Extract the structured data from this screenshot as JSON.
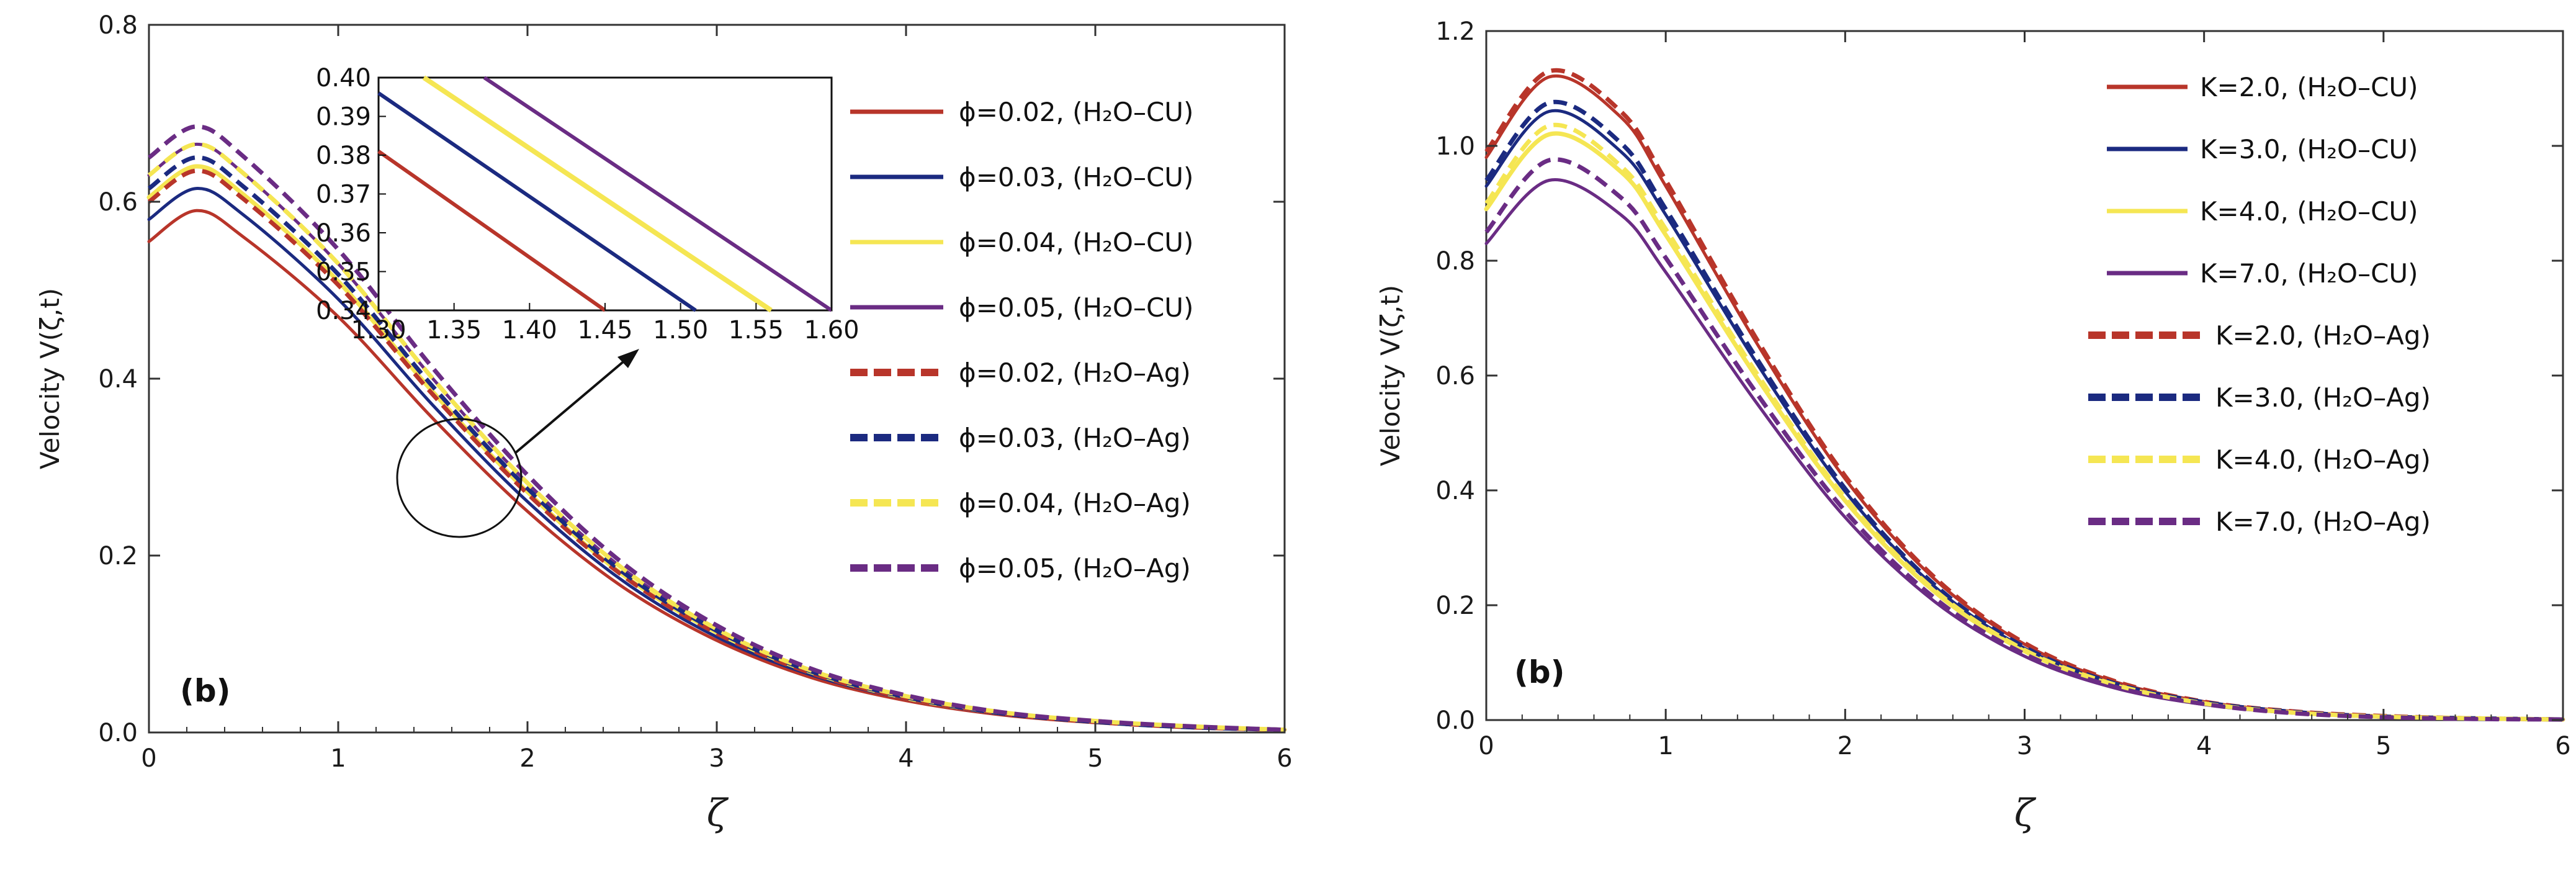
{
  "chart_data": [
    {
      "type": "line",
      "panel_label": "(b)",
      "xlabel": "ζ",
      "ylabel": "Velocity V(ζ,t)",
      "xlim": [
        0,
        6
      ],
      "ylim": [
        0,
        0.8
      ],
      "xticks": [
        "0",
        "1",
        "2",
        "3",
        "4",
        "5",
        "6"
      ],
      "yticks": [
        "0.0",
        "0.2",
        "0.4",
        "0.6",
        "0.8"
      ],
      "legend_position": "right",
      "series": [
        {
          "name": "ϕ=0.02, (H₂O–CU)",
          "color": "#b8352a",
          "dash": "solid",
          "peak": 0.59,
          "x": [
            0,
            0.25,
            0.5,
            1,
            1.5,
            2,
            2.5,
            3,
            3.5,
            4,
            4.5,
            5,
            5.5,
            6
          ],
          "y": [
            0.555,
            0.59,
            0.56,
            0.47,
            0.355,
            0.25,
            0.165,
            0.104,
            0.062,
            0.036,
            0.02,
            0.011,
            0.006,
            0.003
          ]
        },
        {
          "name": "ϕ=0.03, (H₂O–CU)",
          "color": "#1b2a80",
          "dash": "solid",
          "peak": 0.615,
          "x": [
            0,
            0.25,
            0.5,
            1,
            1.5,
            2,
            2.5,
            3,
            3.5,
            4,
            4.5,
            5,
            5.5,
            6
          ],
          "y": [
            0.58,
            0.615,
            0.585,
            0.49,
            0.37,
            0.261,
            0.172,
            0.108,
            0.065,
            0.038,
            0.021,
            0.012,
            0.006,
            0.003
          ]
        },
        {
          "name": "ϕ=0.04, (H₂O–CU)",
          "color": "#f5e653",
          "dash": "solid",
          "peak": 0.64,
          "x": [
            0,
            0.25,
            0.5,
            1,
            1.5,
            2,
            2.5,
            3,
            3.5,
            4,
            4.5,
            5,
            5.5,
            6
          ],
          "y": [
            0.605,
            0.64,
            0.608,
            0.51,
            0.385,
            0.272,
            0.179,
            0.113,
            0.068,
            0.039,
            0.022,
            0.012,
            0.006,
            0.003
          ]
        },
        {
          "name": "ϕ=0.05, (H₂O–CU)",
          "color": "#6a2c84",
          "dash": "solid",
          "peak": 0.665,
          "x": [
            0,
            0.25,
            0.5,
            1,
            1.5,
            2,
            2.5,
            3,
            3.5,
            4,
            4.5,
            5,
            5.5,
            6
          ],
          "y": [
            0.63,
            0.665,
            0.632,
            0.53,
            0.4,
            0.282,
            0.186,
            0.117,
            0.07,
            0.041,
            0.023,
            0.013,
            0.007,
            0.003
          ]
        },
        {
          "name": "ϕ=0.02, (H₂O–Ag)",
          "color": "#b8352a",
          "dash": "dashed",
          "peak": 0.635,
          "x": [
            0,
            0.25,
            0.5,
            1,
            1.5,
            2,
            2.5,
            3,
            3.5,
            4,
            4.5,
            5,
            5.5,
            6
          ],
          "y": [
            0.6,
            0.635,
            0.603,
            0.506,
            0.382,
            0.27,
            0.178,
            0.112,
            0.067,
            0.039,
            0.022,
            0.012,
            0.006,
            0.003
          ]
        },
        {
          "name": "ϕ=0.03, (H₂O–Ag)",
          "color": "#1b2a80",
          "dash": "dashed",
          "peak": 0.65,
          "x": [
            0,
            0.25,
            0.5,
            1,
            1.5,
            2,
            2.5,
            3,
            3.5,
            4,
            4.5,
            5,
            5.5,
            6
          ],
          "y": [
            0.615,
            0.65,
            0.617,
            0.518,
            0.391,
            0.276,
            0.182,
            0.115,
            0.069,
            0.04,
            0.022,
            0.012,
            0.006,
            0.003
          ]
        },
        {
          "name": "ϕ=0.04, (H₂O–Ag)",
          "color": "#f5e653",
          "dash": "dashed",
          "peak": 0.665,
          "x": [
            0,
            0.25,
            0.5,
            1,
            1.5,
            2,
            2.5,
            3,
            3.5,
            4,
            4.5,
            5,
            5.5,
            6
          ],
          "y": [
            0.63,
            0.665,
            0.632,
            0.53,
            0.4,
            0.282,
            0.186,
            0.117,
            0.07,
            0.041,
            0.023,
            0.013,
            0.007,
            0.003
          ]
        },
        {
          "name": "ϕ=0.05, (H₂O–Ag)",
          "color": "#6a2c84",
          "dash": "dashed",
          "peak": 0.685,
          "x": [
            0,
            0.25,
            0.5,
            1,
            1.5,
            2,
            2.5,
            3,
            3.5,
            4,
            4.5,
            5,
            5.5,
            6
          ],
          "y": [
            0.65,
            0.685,
            0.651,
            0.546,
            0.412,
            0.291,
            0.192,
            0.121,
            0.072,
            0.042,
            0.023,
            0.013,
            0.007,
            0.003
          ]
        }
      ],
      "inset": {
        "xlim": [
          1.3,
          1.6
        ],
        "ylim": [
          0.34,
          0.4
        ],
        "xticks": [
          "1.30",
          "1.35",
          "1.40",
          "1.45",
          "1.50",
          "1.55",
          "1.60"
        ],
        "yticks": [
          "0.34",
          "0.35",
          "0.36",
          "0.37",
          "0.38",
          "0.39",
          "0.40"
        ],
        "lines": [
          {
            "color": "#b8352a",
            "x": [
              1.3,
              1.45
            ],
            "y": [
              0.381,
              0.34
            ]
          },
          {
            "color": "#1b2a80",
            "x": [
              1.3,
              1.51
            ],
            "y": [
              0.396,
              0.34
            ]
          },
          {
            "color": "#f5e653",
            "x": [
              1.33,
              1.56
            ],
            "y": [
              0.4,
              0.34
            ]
          },
          {
            "color": "#6a2c84",
            "x": [
              1.37,
              1.6
            ],
            "y": [
              0.4,
              0.34
            ]
          }
        ]
      }
    },
    {
      "type": "line",
      "panel_label": "(b)",
      "xlabel": "ζ",
      "ylabel": "Velocity V(ζ,t)",
      "xlim": [
        0,
        6
      ],
      "ylim": [
        0,
        1.2
      ],
      "xticks": [
        "0",
        "1",
        "2",
        "3",
        "4",
        "5",
        "6"
      ],
      "yticks": [
        "0.0",
        "0.2",
        "0.4",
        "0.6",
        "0.8",
        "1.0",
        "1.2"
      ],
      "legend_position": "top-right",
      "series": [
        {
          "name": "K=2.0, (H₂O–CU)",
          "color": "#b8352a",
          "dash": "solid",
          "x": [
            0,
            0.35,
            0.75,
            1,
            1.5,
            2,
            2.5,
            3,
            3.5,
            4,
            4.5,
            5,
            5.5,
            6
          ],
          "y": [
            0.98,
            1.12,
            1.05,
            0.93,
            0.66,
            0.42,
            0.245,
            0.132,
            0.067,
            0.032,
            0.015,
            0.007,
            0.003,
            0.001
          ]
        },
        {
          "name": "K=3.0, (H₂O–CU)",
          "color": "#1b2a80",
          "dash": "solid",
          "x": [
            0,
            0.35,
            0.75,
            1,
            1.5,
            2,
            2.5,
            3,
            3.5,
            4,
            4.5,
            5,
            5.5,
            6
          ],
          "y": [
            0.93,
            1.06,
            0.99,
            0.88,
            0.625,
            0.398,
            0.232,
            0.125,
            0.063,
            0.03,
            0.014,
            0.006,
            0.003,
            0.001
          ]
        },
        {
          "name": "K=4.0, (H₂O–CU)",
          "color": "#f5e653",
          "dash": "solid",
          "x": [
            0,
            0.35,
            0.75,
            1,
            1.5,
            2,
            2.5,
            3,
            3.5,
            4,
            4.5,
            5,
            5.5,
            6
          ],
          "y": [
            0.89,
            1.02,
            0.955,
            0.845,
            0.6,
            0.382,
            0.223,
            0.12,
            0.061,
            0.029,
            0.013,
            0.006,
            0.003,
            0.001
          ]
        },
        {
          "name": "K=7.0, (H₂O–CU)",
          "color": "#6a2c84",
          "dash": "solid",
          "x": [
            0,
            0.35,
            0.75,
            1,
            1.5,
            2,
            2.5,
            3,
            3.5,
            4,
            4.5,
            5,
            5.5,
            6
          ],
          "y": [
            0.83,
            0.94,
            0.88,
            0.78,
            0.555,
            0.353,
            0.206,
            0.111,
            0.056,
            0.027,
            0.012,
            0.005,
            0.002,
            0.001
          ]
        },
        {
          "name": "K=2.0, (H₂O–Ag)",
          "color": "#b8352a",
          "dash": "dashed",
          "x": [
            0,
            0.35,
            0.75,
            1,
            1.5,
            2,
            2.5,
            3,
            3.5,
            4,
            4.5,
            5,
            5.5,
            6
          ],
          "y": [
            0.99,
            1.13,
            1.06,
            0.94,
            0.667,
            0.425,
            0.248,
            0.134,
            0.068,
            0.032,
            0.015,
            0.007,
            0.003,
            0.001
          ]
        },
        {
          "name": "K=3.0, (H₂O–Ag)",
          "color": "#1b2a80",
          "dash": "dashed",
          "x": [
            0,
            0.35,
            0.75,
            1,
            1.5,
            2,
            2.5,
            3,
            3.5,
            4,
            4.5,
            5,
            5.5,
            6
          ],
          "y": [
            0.94,
            1.075,
            1.005,
            0.89,
            0.633,
            0.403,
            0.235,
            0.127,
            0.064,
            0.031,
            0.014,
            0.006,
            0.003,
            0.001
          ]
        },
        {
          "name": "K=4.0, (H₂O–Ag)",
          "color": "#f5e653",
          "dash": "dashed",
          "x": [
            0,
            0.35,
            0.75,
            1,
            1.5,
            2,
            2.5,
            3,
            3.5,
            4,
            4.5,
            5,
            5.5,
            6
          ],
          "y": [
            0.9,
            1.035,
            0.965,
            0.855,
            0.607,
            0.387,
            0.226,
            0.122,
            0.062,
            0.029,
            0.013,
            0.006,
            0.003,
            0.001
          ]
        },
        {
          "name": "K=7.0, (H₂O–Ag)",
          "color": "#6a2c84",
          "dash": "dashed",
          "x": [
            0,
            0.35,
            0.75,
            1,
            1.5,
            2,
            2.5,
            3,
            3.5,
            4,
            4.5,
            5,
            5.5,
            6
          ],
          "y": [
            0.85,
            0.975,
            0.91,
            0.805,
            0.572,
            0.364,
            0.212,
            0.115,
            0.058,
            0.028,
            0.012,
            0.005,
            0.002,
            0.001
          ]
        }
      ]
    }
  ]
}
